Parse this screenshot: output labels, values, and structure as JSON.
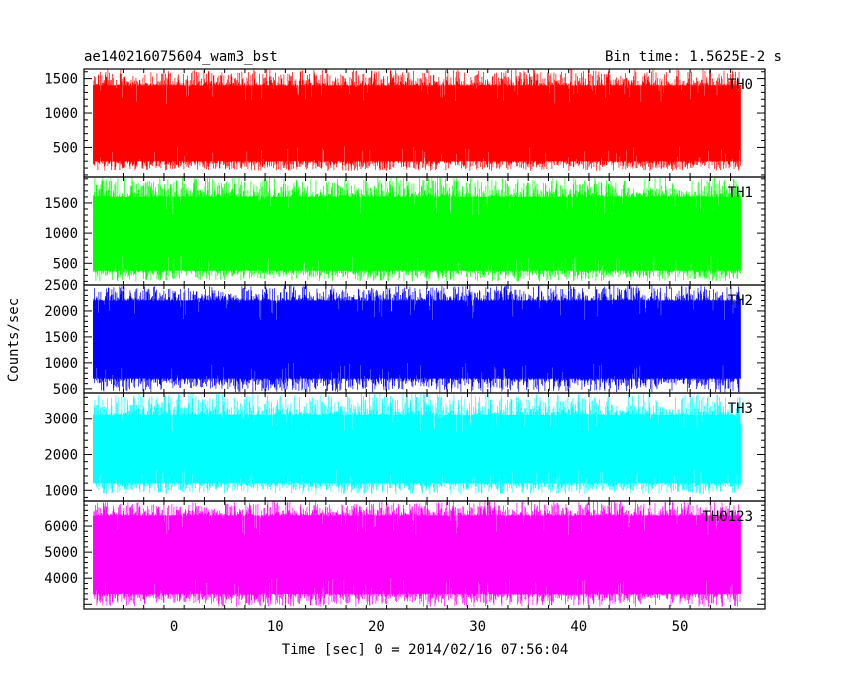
{
  "header": {
    "title": "ae140216075604_wam3_bst",
    "bin_time": "Bin time: 1.5625E-2 s"
  },
  "chart_data": {
    "type": "line",
    "title": "ae140216075604_wam3_bst",
    "subtitle": "Bin time: 1.5625E-2 s",
    "xlabel": "Time [sec] 0 = 2014/02/16 07:56:04",
    "ylabel": "Counts/sec",
    "xlim": [
      -8.9,
      58.4
    ],
    "x_range_data": [
      -8,
      56
    ],
    "xticks": [
      0,
      10,
      20,
      30,
      40,
      50
    ],
    "grid": false,
    "panels": [
      {
        "name": "TH0",
        "color": "#ff0000",
        "ylim": [
          70,
          1640
        ],
        "yticks": [
          500,
          1000,
          1500
        ],
        "typical_min": 300,
        "typical_max": 1400,
        "min": 160,
        "max": 1640
      },
      {
        "name": "TH1",
        "color": "#00ff00",
        "ylim": [
          140,
          1930
        ],
        "yticks": [
          500,
          1000,
          1500
        ],
        "typical_min": 380,
        "typical_max": 1600,
        "min": 200,
        "max": 1930
      },
      {
        "name": "TH2",
        "color": "#0000ff",
        "ylim": [
          420,
          2500
        ],
        "yticks": [
          500,
          1000,
          1500,
          2000,
          2500
        ],
        "typical_min": 700,
        "typical_max": 2200,
        "min": 430,
        "max": 2500
      },
      {
        "name": "TH3",
        "color": "#00ffff",
        "ylim": [
          700,
          3720
        ],
        "yticks": [
          1000,
          2000,
          3000
        ],
        "typical_min": 1200,
        "typical_max": 3100,
        "min": 890,
        "max": 3720
      },
      {
        "name": "TH0123",
        "color": "#ff00ff",
        "ylim": [
          2820,
          6960
        ],
        "yticks": [
          4000,
          5000,
          6000
        ],
        "typical_min": 3400,
        "typical_max": 6400,
        "min": 2900,
        "max": 6960
      }
    ]
  }
}
